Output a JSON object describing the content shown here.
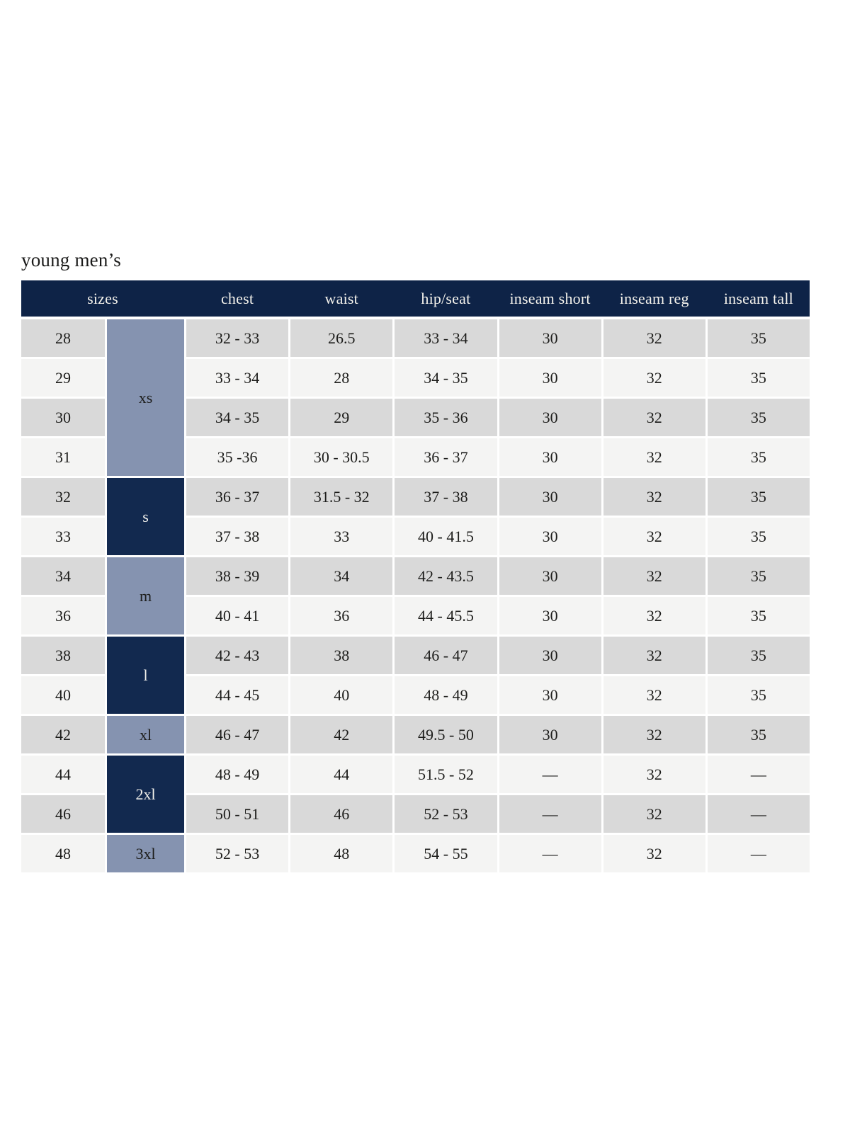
{
  "title": "young men’s",
  "colors": {
    "header_bg": "#0e2347",
    "header_text": "#f4f2ec",
    "group_dark_bg": "#12294f",
    "group_light_bg": "#8593b0",
    "row_gray": "#d9d9d9",
    "row_light": "#f4f4f3",
    "text_dark": "#1d1d1b"
  },
  "table": {
    "headers": [
      {
        "label": "sizes",
        "span": 2
      },
      {
        "label": "chest",
        "span": 1
      },
      {
        "label": "waist",
        "span": 1
      },
      {
        "label": "hip/seat",
        "span": 1
      },
      {
        "label": "inseam short",
        "span": 1
      },
      {
        "label": "inseam reg",
        "span": 1
      },
      {
        "label": "inseam tall",
        "span": 1
      }
    ],
    "size_groups": [
      {
        "label": "xs",
        "row_span": 4,
        "variant": "light"
      },
      {
        "label": "s",
        "row_span": 2,
        "variant": "dark"
      },
      {
        "label": "m",
        "row_span": 2,
        "variant": "light"
      },
      {
        "label": "l",
        "row_span": 2,
        "variant": "dark"
      },
      {
        "label": "xl",
        "row_span": 1,
        "variant": "light"
      },
      {
        "label": "2xl",
        "row_span": 2,
        "variant": "dark"
      },
      {
        "label": "3xl",
        "row_span": 1,
        "variant": "light"
      }
    ],
    "rows": [
      {
        "size": "28",
        "chest": "32 - 33",
        "waist": "26.5",
        "hip_seat": "33 - 34",
        "inseam_short": "30",
        "inseam_reg": "32",
        "inseam_tall": "35"
      },
      {
        "size": "29",
        "chest": "33 - 34",
        "waist": "28",
        "hip_seat": "34 - 35",
        "inseam_short": "30",
        "inseam_reg": "32",
        "inseam_tall": "35"
      },
      {
        "size": "30",
        "chest": "34 - 35",
        "waist": "29",
        "hip_seat": "35 - 36",
        "inseam_short": "30",
        "inseam_reg": "32",
        "inseam_tall": "35"
      },
      {
        "size": "31",
        "chest": "35 -36",
        "waist": "30 - 30.5",
        "hip_seat": "36 - 37",
        "inseam_short": "30",
        "inseam_reg": "32",
        "inseam_tall": "35"
      },
      {
        "size": "32",
        "chest": "36 - 37",
        "waist": "31.5 - 32",
        "hip_seat": "37 - 38",
        "inseam_short": "30",
        "inseam_reg": "32",
        "inseam_tall": "35"
      },
      {
        "size": "33",
        "chest": "37 - 38",
        "waist": "33",
        "hip_seat": "40 - 41.5",
        "inseam_short": "30",
        "inseam_reg": "32",
        "inseam_tall": "35"
      },
      {
        "size": "34",
        "chest": "38 - 39",
        "waist": "34",
        "hip_seat": "42 - 43.5",
        "inseam_short": "30",
        "inseam_reg": "32",
        "inseam_tall": "35"
      },
      {
        "size": "36",
        "chest": "40 - 41",
        "waist": "36",
        "hip_seat": "44 - 45.5",
        "inseam_short": "30",
        "inseam_reg": "32",
        "inseam_tall": "35"
      },
      {
        "size": "38",
        "chest": "42 - 43",
        "waist": "38",
        "hip_seat": "46 - 47",
        "inseam_short": "30",
        "inseam_reg": "32",
        "inseam_tall": "35"
      },
      {
        "size": "40",
        "chest": "44 - 45",
        "waist": "40",
        "hip_seat": "48 - 49",
        "inseam_short": "30",
        "inseam_reg": "32",
        "inseam_tall": "35"
      },
      {
        "size": "42",
        "chest": "46 - 47",
        "waist": "42",
        "hip_seat": "49.5 - 50",
        "inseam_short": "30",
        "inseam_reg": "32",
        "inseam_tall": "35"
      },
      {
        "size": "44",
        "chest": "48 - 49",
        "waist": "44",
        "hip_seat": "51.5 - 52",
        "inseam_short": "—",
        "inseam_reg": "32",
        "inseam_tall": "—"
      },
      {
        "size": "46",
        "chest": "50 - 51",
        "waist": "46",
        "hip_seat": "52 - 53",
        "inseam_short": "—",
        "inseam_reg": "32",
        "inseam_tall": "—"
      },
      {
        "size": "48",
        "chest": "52 - 53",
        "waist": "48",
        "hip_seat": "54 - 55",
        "inseam_short": "—",
        "inseam_reg": "32",
        "inseam_tall": "—"
      }
    ]
  }
}
